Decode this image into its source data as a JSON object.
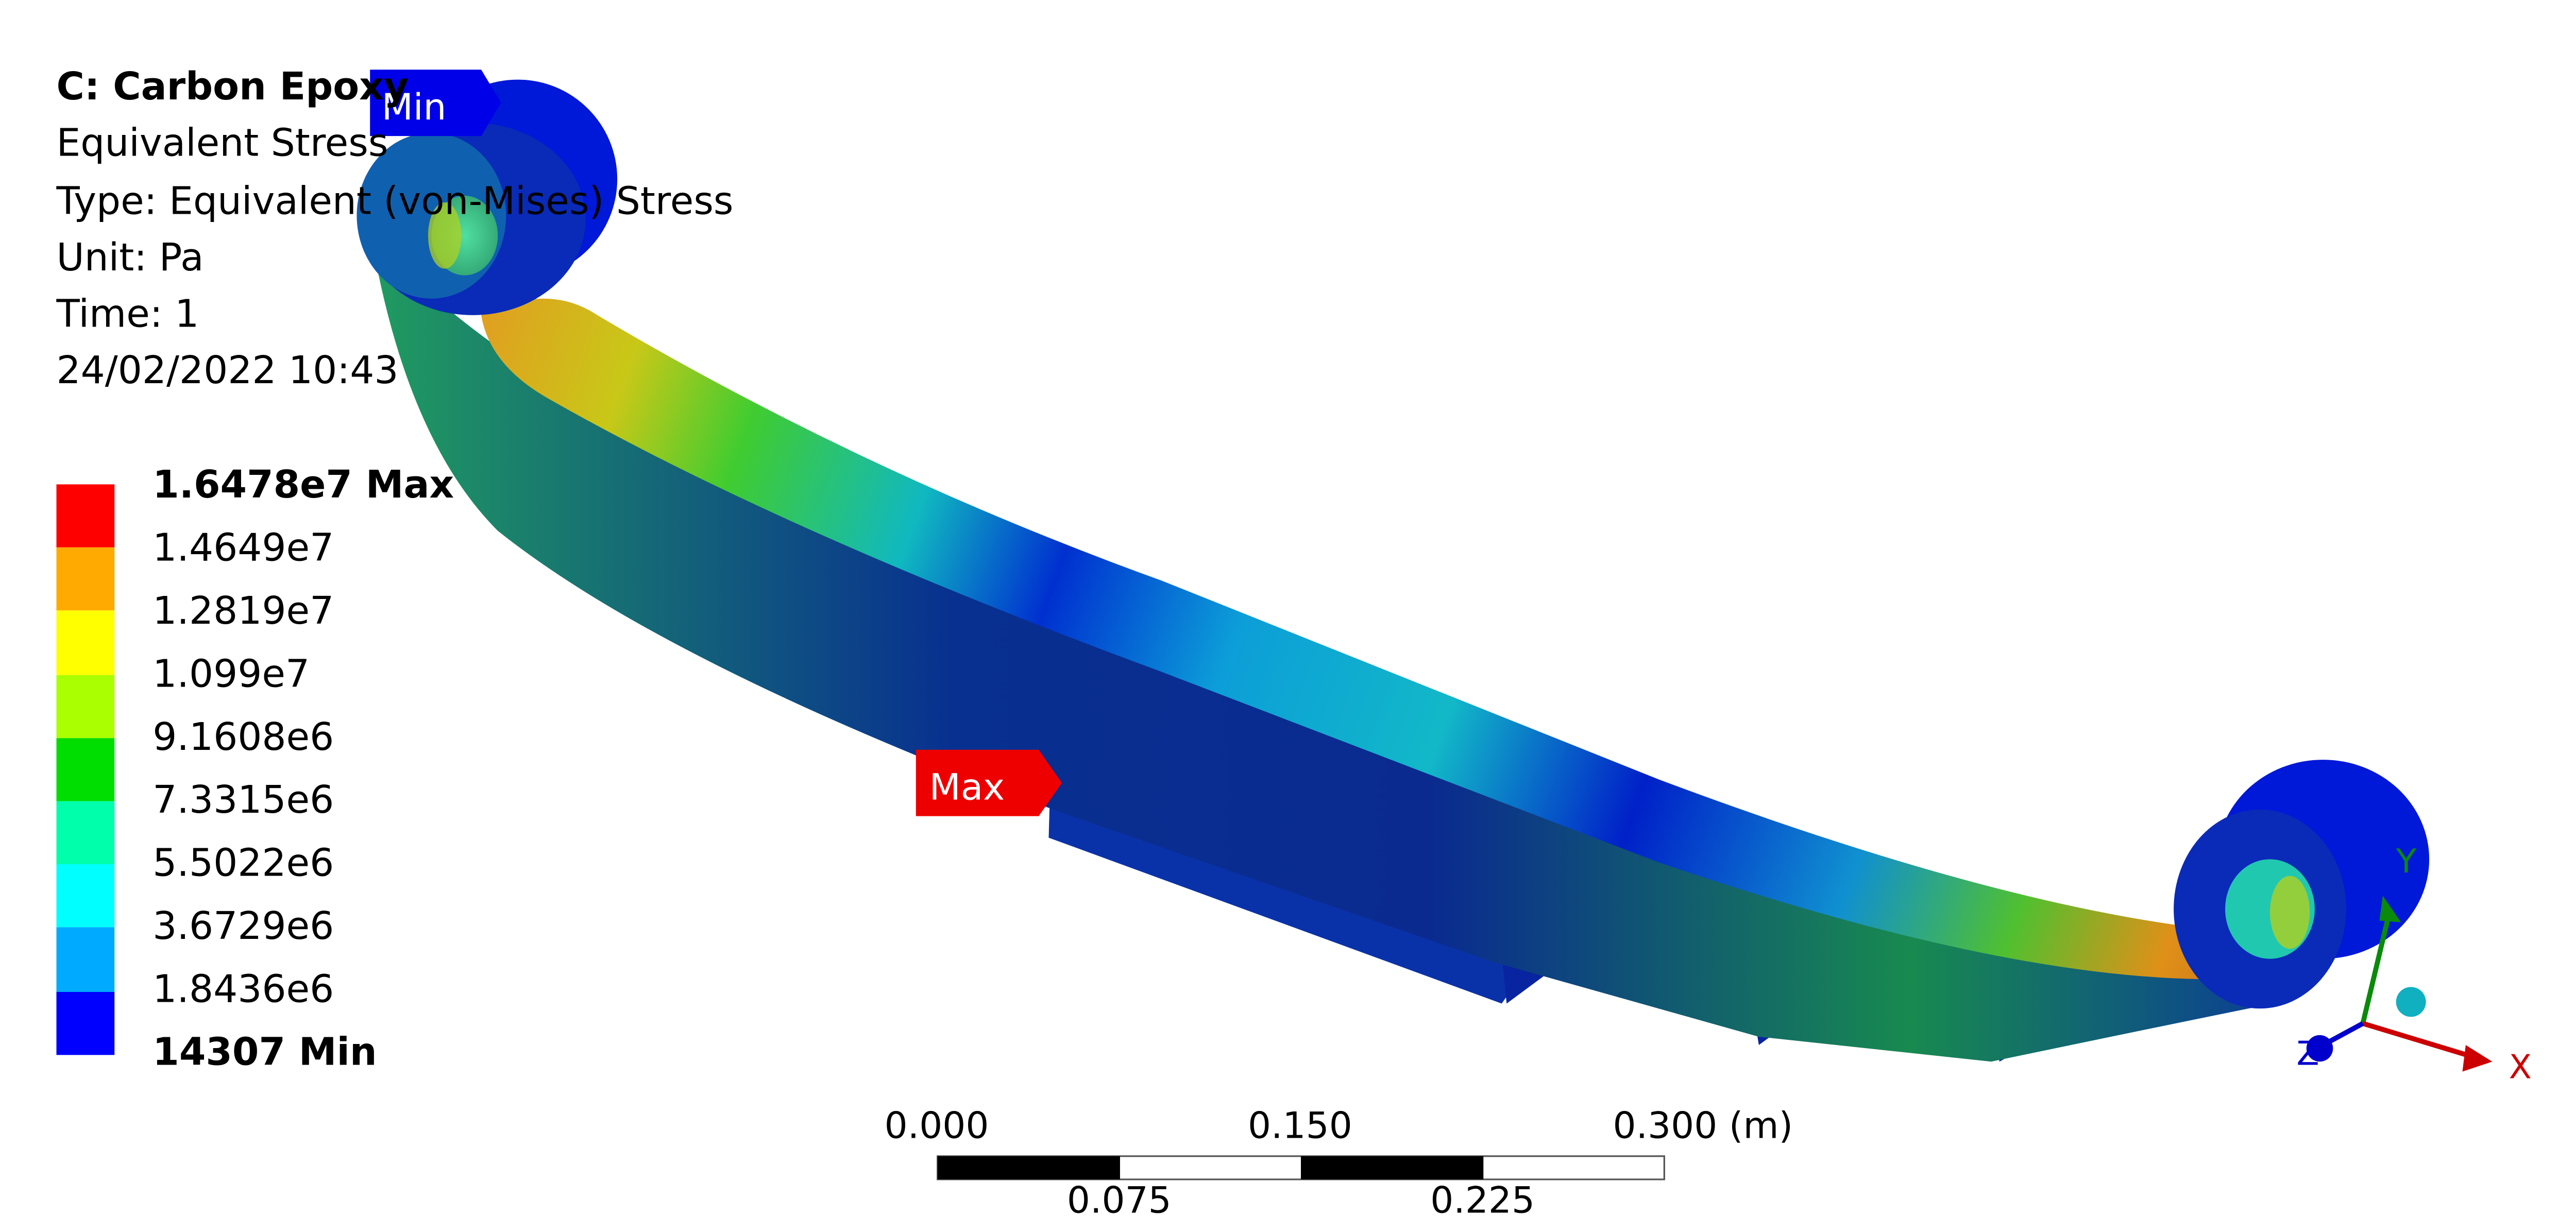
{
  "header": {
    "lines": [
      "C: Carbon Epoxy",
      "Equivalent Stress",
      "Type: Equivalent (von-Mises) Stress",
      "Unit: Pa",
      "Time: 1",
      "24/02/2022 10:43"
    ]
  },
  "legend": {
    "labels": [
      "1.6478e7 Max",
      "1.4649e7",
      "1.2819e7",
      "1.099e7",
      "9.1608e6",
      "7.3315e6",
      "5.5022e6",
      "3.6729e6",
      "1.8436e6",
      "14307 Min"
    ],
    "colors": [
      "#ff0000",
      "#ffaa00",
      "#ffff00",
      "#aaff00",
      "#00dd00",
      "#00ffaa",
      "#00ffff",
      "#00aaff",
      "#0000ff"
    ]
  },
  "markers": {
    "min_label": "Min",
    "max_label": "Max"
  },
  "scale_bar": {
    "top_labels": [
      "0.000",
      "0.150",
      "0.300 (m)"
    ],
    "bottom_labels": [
      "0.075",
      "0.225"
    ]
  },
  "triad": {
    "x_label": "X",
    "y_label": "Y",
    "z_label": "Z"
  }
}
